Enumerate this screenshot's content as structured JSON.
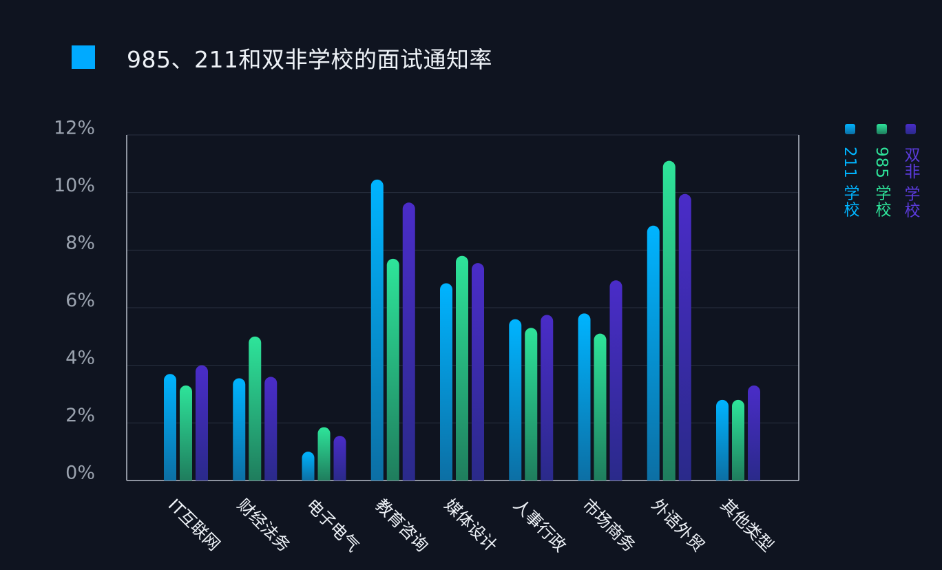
{
  "title": "985、211和双非学校的面试通知率",
  "colors": {
    "title_marker": "#00aaff",
    "background": "#0f1420",
    "grid": "#2a3140",
    "axis": "#b9bfca",
    "tick_label": "#9aa2ae"
  },
  "chart_data": {
    "type": "bar",
    "title": "985、211和双非学校的面试通知率",
    "categories": [
      "IT互联网",
      "财经法务",
      "电子电气",
      "教育咨询",
      "媒体设计",
      "人事行政",
      "市场商务",
      "外语外贸",
      "其他类型"
    ],
    "series": [
      {
        "name": "211学校",
        "legend_label": "211 学校",
        "color_top": "#00b4ff",
        "color_bottom": "#0c6fa4",
        "values": [
          3.7,
          3.55,
          1.0,
          10.45,
          6.85,
          5.6,
          5.8,
          8.85,
          2.8
        ]
      },
      {
        "name": "985学校",
        "legend_label": "985 学校",
        "color_top": "#2ee49a",
        "color_bottom": "#1f7d5d",
        "values": [
          3.3,
          5.0,
          1.85,
          7.7,
          7.8,
          5.3,
          5.1,
          11.1,
          2.8
        ]
      },
      {
        "name": "双非学校",
        "legend_label": "双非 学校",
        "color_top": "#4a2cc8",
        "color_bottom": "#2a2a8a",
        "values": [
          4.0,
          3.6,
          1.55,
          9.65,
          7.55,
          5.75,
          6.95,
          9.95,
          3.3
        ]
      }
    ],
    "y_ticks": [
      "0%",
      "2%",
      "4%",
      "6%",
      "8%",
      "10%",
      "12%"
    ],
    "ylim": [
      0,
      12
    ],
    "grid": true,
    "legend_position": "right",
    "xlabel": "",
    "ylabel": ""
  }
}
